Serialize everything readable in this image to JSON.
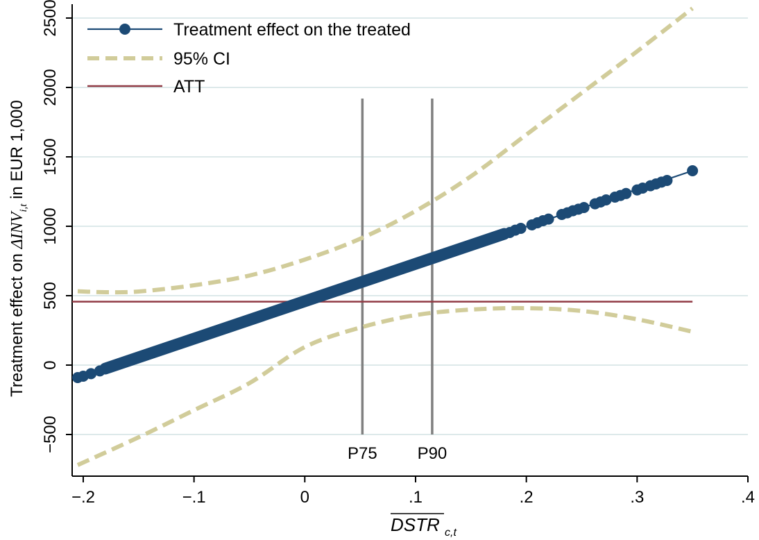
{
  "chart_data": {
    "type": "line",
    "title": "",
    "xlabel": "DSTR",
    "xlabel_subscript": "c,t",
    "xlabel_overline": true,
    "ylabel_prefix": "Treatment effect on ",
    "ylabel_var": "ΔINV",
    "ylabel_subscript": "i,t",
    "ylabel_suffix": " in EUR 1,000",
    "xlim": [
      -0.21,
      0.4
    ],
    "ylim": [
      -800,
      2600
    ],
    "x_ticks": [
      -0.2,
      -0.1,
      0,
      0.1,
      0.2,
      0.3,
      0.4
    ],
    "x_tick_labels": [
      "−.2",
      "−.1",
      "0",
      ".1",
      ".2",
      ".3",
      ".4"
    ],
    "y_ticks": [
      -500,
      0,
      500,
      1000,
      1500,
      2000,
      2500
    ],
    "y_tick_labels": [
      "−500",
      "0",
      "500",
      "1000",
      "1500",
      "2000",
      "2500"
    ],
    "grid": true,
    "legend_position": "top-left",
    "legend": [
      {
        "label": "Treatment effect on the treated",
        "style": "line-marker",
        "color": "#1c4a75"
      },
      {
        "label": "95% CI",
        "style": "dashed",
        "color": "#d1cc9a"
      },
      {
        "label": "ATT",
        "style": "solid",
        "color": "#903a44"
      }
    ],
    "series": [
      {
        "name": "Treatment effect on the treated",
        "color": "#1c4a75",
        "line": {
          "x": [
            -0.205,
            0.35
          ],
          "y": [
            -90,
            1400
          ]
        },
        "dense_range": {
          "x": [
            -0.18,
            0.18
          ],
          "y": [
            -25,
            945
          ]
        },
        "sparse_points": {
          "x": [
            -0.205,
            -0.2,
            -0.193,
            -0.185,
            0.185,
            0.19,
            0.195,
            0.205,
            0.21,
            0.215,
            0.22,
            0.232,
            0.237,
            0.242,
            0.247,
            0.252,
            0.262,
            0.267,
            0.272,
            0.28,
            0.285,
            0.29,
            0.3,
            0.305,
            0.312,
            0.317,
            0.322,
            0.327,
            0.35
          ],
          "y": [
            -90,
            -80,
            -62,
            -42,
            955,
            972,
            985,
            1010,
            1025,
            1040,
            1052,
            1085,
            1097,
            1112,
            1123,
            1135,
            1162,
            1175,
            1190,
            1210,
            1222,
            1236,
            1262,
            1275,
            1292,
            1305,
            1318,
            1330,
            1400
          ]
        }
      },
      {
        "name": "95% CI",
        "color": "#d1cc9a",
        "upper": {
          "x": [
            -0.205,
            -0.18,
            -0.15,
            -0.1,
            -0.05,
            0,
            0.05,
            0.1,
            0.15,
            0.2,
            0.25,
            0.3,
            0.35
          ],
          "y": [
            532,
            525,
            530,
            575,
            645,
            760,
            910,
            1110,
            1360,
            1660,
            1960,
            2260,
            2570
          ]
        },
        "lower": {
          "x": [
            -0.205,
            -0.15,
            -0.1,
            -0.05,
            0,
            0.05,
            0.1,
            0.15,
            0.2,
            0.25,
            0.3,
            0.35
          ],
          "y": [
            -720,
            -520,
            -325,
            -130,
            130,
            270,
            360,
            400,
            410,
            390,
            330,
            240
          ]
        }
      },
      {
        "name": "ATT",
        "color": "#903a44",
        "x": [
          -0.21,
          0.35
        ],
        "y": [
          457,
          457
        ]
      }
    ],
    "reference_lines": [
      {
        "label": "P75",
        "x": 0.052,
        "y_range": [
          -500,
          1920
        ],
        "color": "#808080"
      },
      {
        "label": "P90",
        "x": 0.115,
        "y_range": [
          -500,
          1920
        ],
        "color": "#808080"
      }
    ],
    "colors": {
      "grid": "#dde9ea",
      "axis": "#000000",
      "reference": "#808080"
    }
  }
}
